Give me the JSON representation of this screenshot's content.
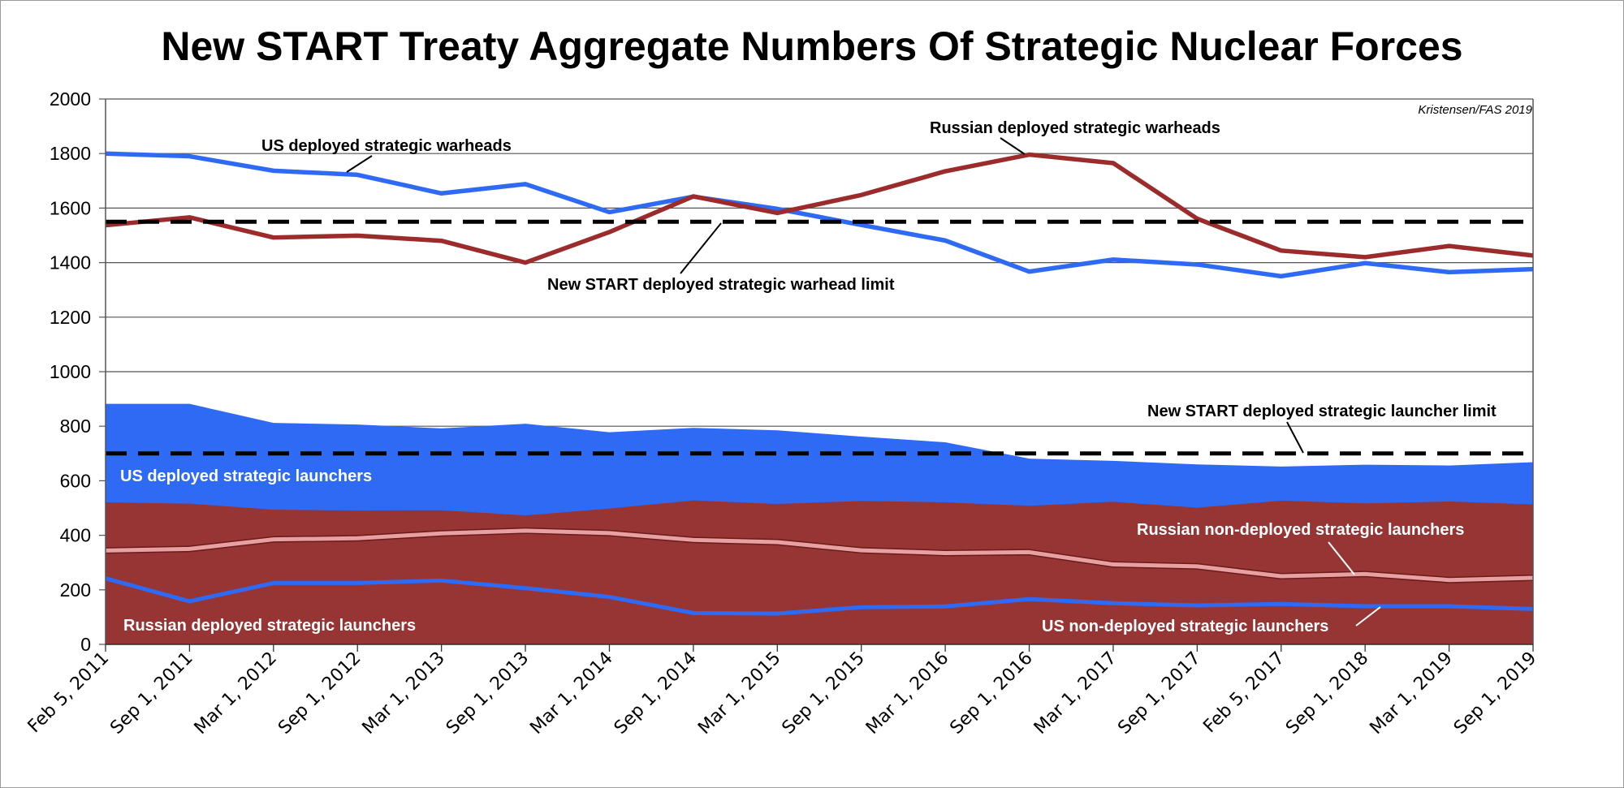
{
  "chart_data": {
    "type": "area",
    "title": "New START Treaty Aggregate Numbers Of Strategic Nuclear Forces",
    "credit": "Kristensen/FAS 2019",
    "xlabel": "",
    "ylabel": "",
    "ylim": [
      0,
      2000
    ],
    "yticks": [
      0,
      200,
      400,
      600,
      800,
      1000,
      1200,
      1400,
      1600,
      1800,
      2000
    ],
    "grid": true,
    "categories": [
      "Feb 5, 2011",
      "Sep 1, 2011",
      "Mar 1, 2012",
      "Sep 1, 2012",
      "Mar 1, 2013",
      "Sep 1, 2013",
      "Mar 1, 2014",
      "Sep 1, 2014",
      "Mar 1, 2015",
      "Sep 1, 2015",
      "Mar 1, 2016",
      "Sep 1, 2016",
      "Mar 1, 2017",
      "Sep 1, 2017",
      "Feb 5, 2017",
      "Sep 1, 2018",
      "Mar 1, 2019",
      "Sep 1, 2019"
    ],
    "series": [
      {
        "name": "US deployed strategic warheads",
        "kind": "line",
        "color": "#2f6af5",
        "values": [
          1800,
          1790,
          1737,
          1722,
          1654,
          1688,
          1585,
          1642,
          1597,
          1538,
          1481,
          1367,
          1411,
          1393,
          1350,
          1398,
          1365,
          1376
        ]
      },
      {
        "name": "Russian deployed strategic warheads",
        "kind": "line",
        "color": "#9c2b2b",
        "values": [
          1537,
          1566,
          1492,
          1499,
          1480,
          1400,
          1512,
          1643,
          1582,
          1648,
          1735,
          1796,
          1765,
          1561,
          1444,
          1420,
          1461,
          1426
        ]
      },
      {
        "name": "US deployed strategic launchers",
        "kind": "area",
        "color": "#2f6af5",
        "values": [
          882,
          882,
          812,
          806,
          792,
          809,
          778,
          794,
          785,
          762,
          741,
          681,
          673,
          660,
          652,
          659,
          656,
          668
        ]
      },
      {
        "name": "Russian deployed strategic launchers",
        "kind": "area",
        "color": "#973535",
        "values": [
          521,
          516,
          494,
          491,
          492,
          473,
          498,
          528,
          515,
          526,
          521,
          508,
          523,
          501,
          527,
          517,
          524,
          513
        ]
      },
      {
        "name": "Russian non-deployed strategic launchers",
        "kind": "line",
        "color": "#e8a0a0",
        "values": [
          344,
          350,
          385,
          389,
          407,
          417,
          408,
          383,
          375,
          345,
          335,
          338,
          293,
          286,
          250,
          258,
          236,
          244
        ]
      },
      {
        "name": "US non-deployed strategic launchers",
        "kind": "line",
        "color": "#2f6af5",
        "values": [
          242,
          158,
          225,
          225,
          234,
          206,
          174,
          115,
          113,
          136,
          139,
          166,
          151,
          143,
          148,
          140,
          140,
          130
        ]
      }
    ],
    "limits": [
      {
        "name": "New START deployed strategic warhead limit",
        "value": 1550
      },
      {
        "name": "New START deployed strategic launcher limit",
        "value": 700
      }
    ],
    "annotations": {
      "us_warheads": "US deployed strategic warheads",
      "ru_warheads": "Russian deployed strategic warheads",
      "warhead_limit": "New START deployed strategic warhead limit",
      "launcher_limit": "New START deployed strategic launcher limit",
      "us_launchers": "US deployed strategic launchers",
      "ru_nondeployed": "Russian non-deployed strategic launchers",
      "ru_launchers": "Russian deployed strategic launchers",
      "us_nondeployed": "US non-deployed strategic launchers"
    }
  }
}
